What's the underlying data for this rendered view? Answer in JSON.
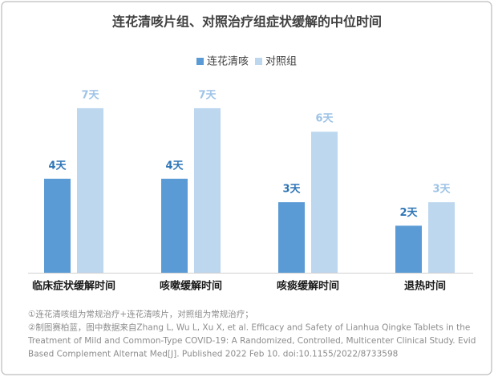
{
  "chart_data": {
    "type": "bar",
    "title": "连花清咳片组、对照治疗组症状缓解的中位时间",
    "categories": [
      "临床症状缓解时间",
      "咳嗽缓解时间",
      "咳痰缓解时间",
      "退热时间"
    ],
    "series": [
      {
        "name": "连花清咳",
        "color": "#5b9bd5",
        "label_color": "#2e75b6",
        "values": [
          4,
          4,
          3,
          2
        ],
        "value_labels": [
          "4天",
          "4天",
          "3天",
          "2天"
        ]
      },
      {
        "name": "对照组",
        "color": "#bdd7ee",
        "label_color": "#9dc3e6",
        "values": [
          7,
          7,
          6,
          3
        ],
        "value_labels": [
          "7天",
          "7天",
          "6天",
          "3天"
        ]
      }
    ],
    "legend": "top",
    "notes": [
      "①连花清咳组为常规治疗+连花清咳片，对照组为常规治疗；",
      "②制图赛柏蓝，图中数据来自Zhang L, Wu L, Xu X, et al. Efficacy and Safety of Lianhua Qingke Tablets in the",
      "Treatment of Mild and Common-Type COVID-19: A Randomized, Controlled, Multicenter Clinical Study. Evid",
      "Based Complement Alternat Med[J]. Published 2022 Feb 10. doi:10.1155/2022/8733598"
    ]
  }
}
